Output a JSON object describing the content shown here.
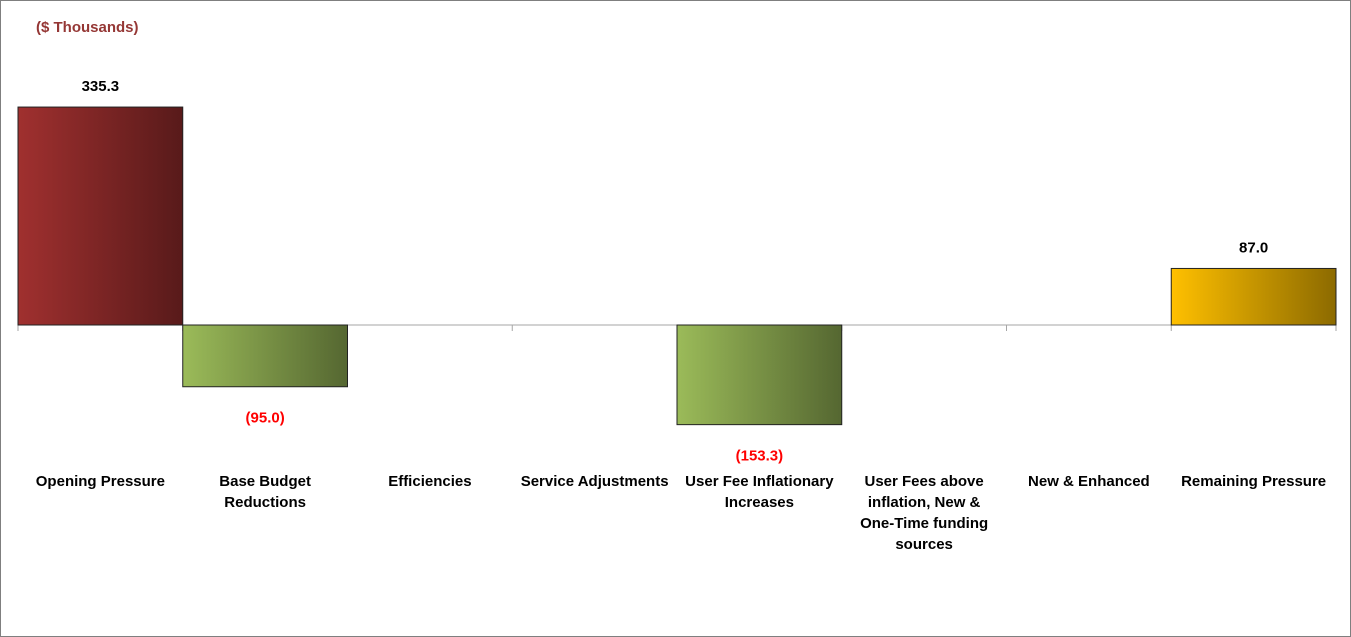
{
  "chart_data": {
    "type": "bar",
    "title": "($ Thousands)",
    "categories": [
      "Opening Pressure",
      "Base Budget Reductions",
      "Efficiencies",
      "Service Adjustments",
      "User Fee Inflationary Increases",
      "User Fees above inflation, New & One-Time funding sources",
      "New & Enhanced",
      "Remaining Pressure"
    ],
    "values": [
      335.3,
      -95.0,
      null,
      null,
      -153.3,
      null,
      null,
      87.0
    ],
    "value_labels": [
      "335.3",
      "(95.0)",
      null,
      null,
      "(153.3)",
      null,
      null,
      "87.0"
    ],
    "colors": [
      "#a0302f",
      "#9bbb59",
      null,
      null,
      "#9bbb59",
      null,
      null,
      "#ffc000"
    ],
    "ylim": [
      -200,
      400
    ]
  }
}
